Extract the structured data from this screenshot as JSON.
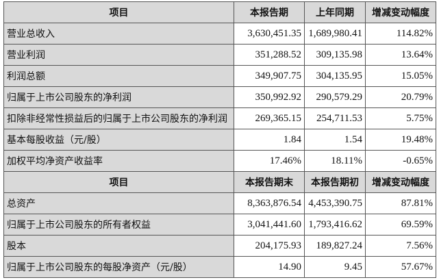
{
  "table1": {
    "headers": [
      "项目",
      "本报告期",
      "上年同期",
      "增减变动幅度"
    ],
    "rows": [
      [
        "营业总收入",
        "3,630,451.35",
        "1,689,980.41",
        "114.82%"
      ],
      [
        "营业利润",
        "351,288.52",
        "309,135.98",
        "13.64%"
      ],
      [
        "利润总额",
        "349,907.75",
        "304,135.95",
        "15.05%"
      ],
      [
        "归属于上市公司股东的净利润",
        "350,992.92",
        "290,579.29",
        "20.79%"
      ],
      [
        "扣除非经常性损益后的归属于上市公司股东的净利润",
        "269,365.15",
        "254,711.53",
        "5.75%"
      ],
      [
        "基本每股收益（元/股）",
        "1.84",
        "1.54",
        "19.48%"
      ],
      [
        "加权平均净资产收益率",
        "17.46%",
        "18.11%",
        "-0.65%"
      ]
    ]
  },
  "table2": {
    "headers": [
      "项目",
      "本报告期末",
      "本报告期初",
      "增减变动幅度"
    ],
    "rows": [
      [
        "总资产",
        "8,363,876.54",
        "4,453,390.75",
        "87.81%"
      ],
      [
        "归属于上市公司股东的所有者权益",
        "3,041,441.60",
        "1,793,416.62",
        "69.59%"
      ],
      [
        "股本",
        "204,175.93",
        "189,827.24",
        "7.56%"
      ],
      [
        "归属于上市公司股东的每股净资产（元/股）",
        "14.90",
        "9.45",
        "57.67%"
      ]
    ]
  },
  "colors": {
    "header_bg": "#d9d9d9",
    "label_bg": "#d9d9d9",
    "border": "#555555"
  }
}
